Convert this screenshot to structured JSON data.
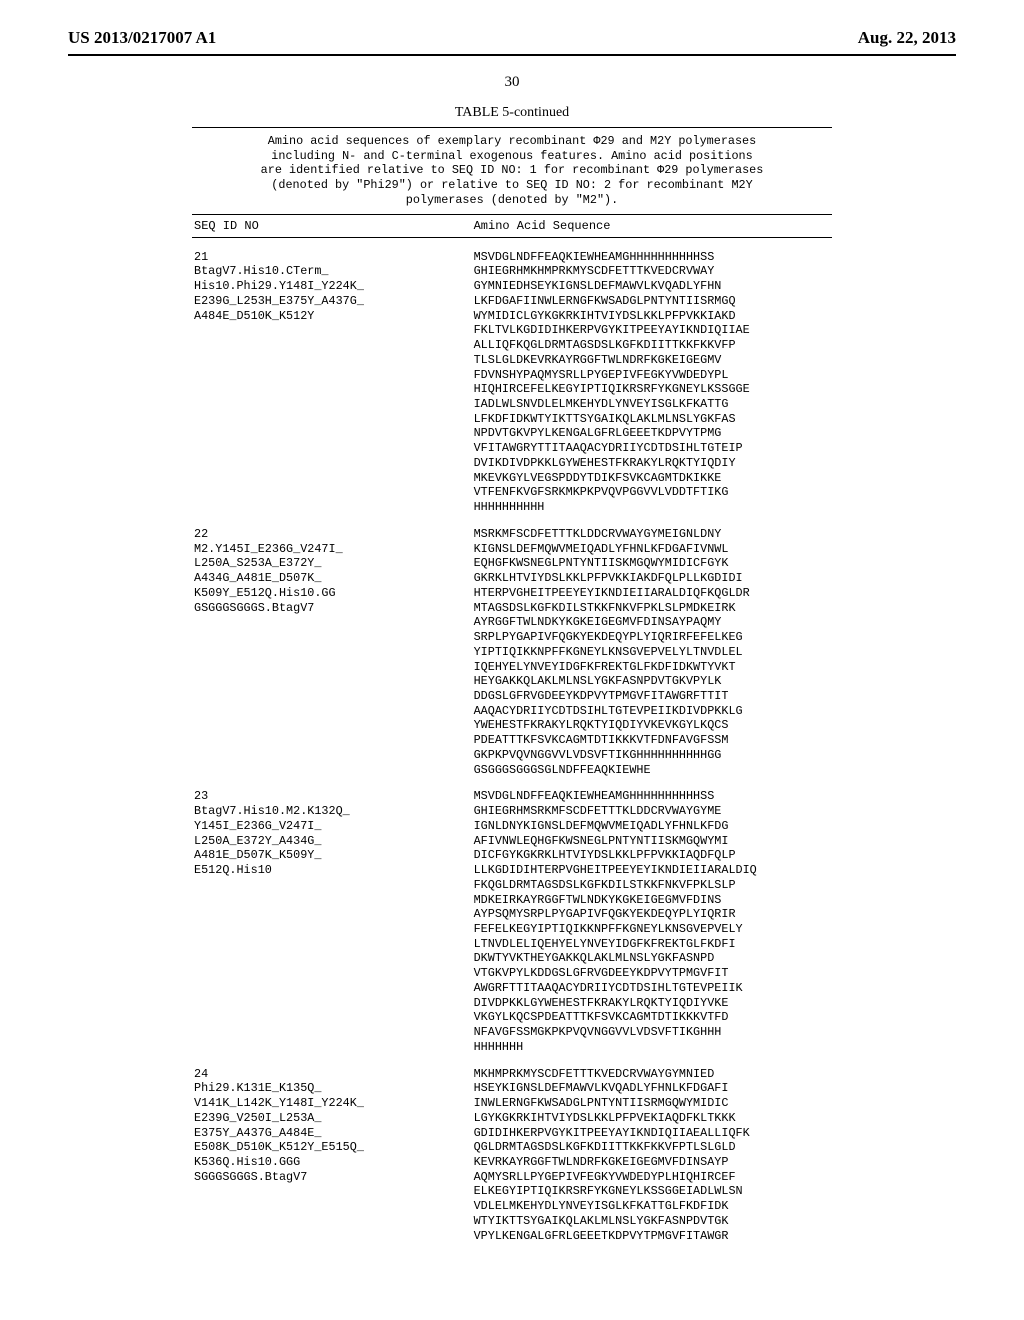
{
  "header": {
    "pub_number": "US 2013/0217007 A1",
    "pub_date": "Aug. 22, 2013"
  },
  "page_number": "30",
  "table": {
    "title": "TABLE 5-continued",
    "caption_line1": "Amino acid sequences of exemplary recombinant Φ29 and M2Y polymerases",
    "caption_line2": "including N- and C-terminal exogenous features. Amino acid positions",
    "caption_line3": "are identified relative to SEQ ID NO: 1 for recombinant Φ29 polymerases",
    "caption_line4": "(denoted by \"Phi29\") or relative to SEQ ID NO: 2 for recombinant M2Y",
    "caption_line5": "polymerases (denoted by \"M2\").",
    "col_headers": {
      "left": "SEQ ID NO",
      "right": "Amino Acid Sequence"
    },
    "entries": [
      {
        "id_lines": "21\nBtagV7.His10.CTerm_\nHis10.Phi29.Y148I_Y224K_\nE239G_L253H_E375Y_A437G_\nA484E_D510K_K512Y",
        "sequence": "MSVDGLNDFFEAQKIEWHEAMGHHHHHHHHHHSS\nGHIEGRHMKHMPRKMYSCDFETTTKVEDCRVWAY\nGYMNIEDHSEYKIGNSLDEFMAWVLKVQADLYFHN\nLKFDGAFIINWLERNGFKWSADGLPNTYNTIISRMGQ\nWYMIDICLGYKGKRKIHTVIYDSLKKLPFPVKKIAKD\nFKLTVLKGDIDIHKERPVGYKITPEEYAYIKNDIQIIAE\nALLIQFKQGLDRMTAGSDSLKGFKDIITTKKFKKVFP\nTLSLGLDKEVRKAYRGGFTWLNDRFKGKEIGEGMV\nFDVNSHYPAQMYSRLLPYGEPIVFEGKYVWDEDYPL\nHIQHIRCEFELKEGYIPTIQIKRSRFYKGNEYLKSSGGE\nIADLWLSNVDLELMKEHYDLYNVEYISGLKFKATTG\nLFKDFIDKWTYIKTTSYGAIKQLAKLMLNSLYGKFAS\nNPDVTGKVPYLKENGALGFRLGEEETKDPVYTPMG\nVFITAWGRYTTITAAQACYDRIIYCDTDSIHLTGTEIP\nDVIKDIVDPKKLGYWEHESTFKRAKYLRQKTYIQDIY\nMKEVKGYLVEGSPDDYTDIKFSVKCAGMTDKIKKE\nVTFENFKVGFSRKMKPKPVQVPGGVVLVDDTFTIKG\nHHHHHHHHHH"
      },
      {
        "id_lines": "22\nM2.Y145I_E236G_V247I_\nL250A_S253A_E372Y_\nA434G_A481E_D507K_\nK509Y_E512Q.His10.GG\nGSGGGSGGGS.BtagV7",
        "sequence": "MSRKMFSCDFETTTKLDDCRVWAYGYMEIGNLDNY\nKIGNSLDEFMQWVMEIQADLYFHNLKFDGAFIVNWL\nEQHGFKWSNEGLPNTYNTIISKMGQWYMIDICFGYK\nGKRKLHTVIYDSLKKLPFPVKKIAKDFQLPLLKGDIDI\nHTERPVGHEITPEEYEYIKNDIEIIARALDIQFKQGLDR\nMTAGSDSLKGFKDILSTKKFNKVFPKLSLPMDKEIRK\nAYRGGFTWLNDKYKGKEIGEGMVFDINSAYPAQMY\nSRPLPYGAPIVFQGKYEKDEQYPLYIQRIRFEFELKEG\nYIPTIQIKKNPFFKGNEYLKNSGVEPVELYLTNVDLEL\nIQEHYELYNVEYIDGFKFREKTGLFKDFIDKWTYVKT\nHEYGAKKQLAKLMLNSLYGKFASNPDVTGKVPYLK\nDDGSLGFRVGDEEYKDPVYTPMGVFITAWGRFTTIT\nAAQACYDRIIYCDTDSIHLTGTEVPEIIKDIVDPKKLG\nYWEHESTFKRAKYLRQKTYIQDIYVKEVKGYLKQCS\nPDEATTTKFSVKCAGMTDTIKKKVTFDNFAVGFSSM\nGKPKPVQVNGGVVLVDSVFTIKGHHHHHHHHHHGG\nGSGGGSGGGSGLNDFFEAQKIEWHE"
      },
      {
        "id_lines": "23\nBtagV7.His10.M2.K132Q_\nY145I_E236G_V247I_\nL250A_E372Y_A434G_\nA481E_D507K_K509Y_\nE512Q.His10",
        "sequence": "MSVDGLNDFFEAQKIEWHEAMGHHHHHHHHHHSS\nGHIEGRHMSRKMFSCDFETTTKLDDCRVWAYGYME\nIGNLDNYKIGNSLDEFMQWVMEIQADLYFHNLKFDG\nAFIVNWLEQHGFKWSNEGLPNTYNTIISKMGQWYMI\nDICFGYKGKRKLHTVIYDSLKKLPFPVKKIAQDFQLP\nLLKGDIDIHTERPVGHEITPEEYEYIKNDIEIIARALDIQ\nFKQGLDRMTAGSDSLKGFKDILSTKKFNKVFPKLSLP\nMDKEIRKAYRGGFTWLNDKYKGKEIGEGMVFDINS\nAYPSQMYSRPLPYGAPIVFQGKYEKDEQYPLYIQRIR\nFEFELKEGYIPTIQIKKNPFFKGNEYLKNSGVEPVELY\nLTNVDLELIQEHYELYNVEYIDGFKFREKTGLFKDFI\nDKWTYVKTHEYGAKKQLAKLMLNSLYGKFASNPD\nVTGKVPYLKDDGSLGFRVGDEEYKDPVYTPMGVFIT\nAWGRFTTITAAQACYDRIIYCDTDSIHLTGTEVPEIIK\nDIVDPKKLGYWEHESTFKRAKYLRQKTYIQDIYVKE\nVKGYLKQCSPDEATTTKFSVKCAGMTDTIKKKVTFD\nNFAVGFSSMGKPKPVQVNGGVVLVDSVFTIKGHHH\nHHHHHHH"
      },
      {
        "id_lines": "24\nPhi29.K131E_K135Q_\nV141K_L142K_Y148I_Y224K_\nE239G_V250I_L253A_\nE375Y_A437G_A484E_\nE508K_D510K_K512Y_E515Q_\nK536Q.His10.GGG\nSGGGSGGGS.BtagV7",
        "sequence": "MKHMPRKMYSCDFETTTKVEDCRVWAYGYMNIED\nHSEYKIGNSLDEFMAWVLKVQADLYFHNLKFDGAFI\nINWLERNGFKWSADGLPNTYNTIISRMGQWYMIDIC\nLGYKGKRKIHTVIYDSLKKLPFPVEKIAQDFKLTKKK\nGDIDIHKERPVGYKITPEEYAYIKNDIQIIAEALLIQFK\nQGLDRMTAGSDSLKGFKDIITTKKFKKVFPTLSLGLD\nKEVRKAYRGGFTWLNDRFKGKEIGEGMVFDINSAYP\nAQMYSRLLPYGEPIVFEGKYVWDEDYPLHIQHIRCEF\nELKEGYIPTIQIKRSRFYKGNEYLKSSGGEIADLWLSN\nVDLELMKEHYDLYNVEYISGLKFKATTGLFKDFIDK\nWTYIKTTSYGAIKQLAKLMLNSLYGKFASNPDVTGK\nVPYLKENGALGFRLGEEETKDPVYTPMGVFITAWGR"
      }
    ]
  }
}
